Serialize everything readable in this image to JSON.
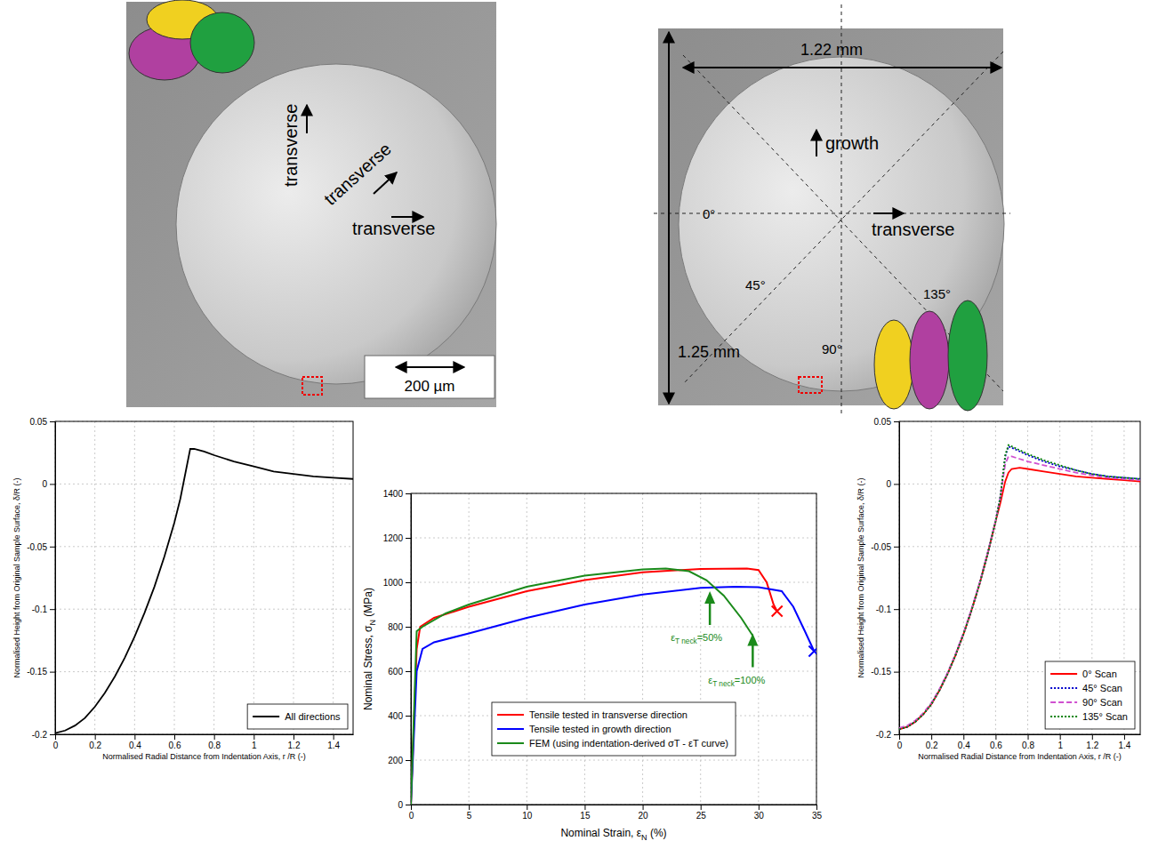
{
  "chart_data": [
    {
      "type": "line",
      "ylabel": [
        "Normalised Height from Original Sample Surface, δ/R (-)"
      ],
      "xlabel": [
        "Normalised Radial Distance from Indentation Axis, r /R (-)"
      ],
      "xlim": [
        0,
        1.5
      ],
      "xticks": [
        0,
        0.2,
        0.4,
        0.6,
        0.8,
        1,
        1.2,
        1.4
      ],
      "ylim": [
        -0.2,
        0.05
      ],
      "yticks": [
        -0.2,
        -0.15,
        -0.1,
        -0.05,
        0,
        0.05
      ],
      "grid": true,
      "legend": "lower right",
      "x": [
        0,
        0.05,
        0.1,
        0.15,
        0.2,
        0.25,
        0.3,
        0.35,
        0.4,
        0.45,
        0.5,
        0.55,
        0.6,
        0.63,
        0.66,
        0.68,
        0.7,
        0.75,
        0.8,
        0.9,
        1.0,
        1.1,
        1.2,
        1.3,
        1.4,
        1.5
      ],
      "series": [
        {
          "name": "All directions",
          "color": "#000000",
          "line_style": "solid",
          "values": [
            -0.199,
            -0.197,
            -0.193,
            -0.187,
            -0.178,
            -0.167,
            -0.154,
            -0.139,
            -0.122,
            -0.103,
            -0.082,
            -0.058,
            -0.031,
            -0.012,
            0.012,
            0.028,
            0.028,
            0.026,
            0.023,
            0.018,
            0.014,
            0.01,
            0.008,
            0.006,
            0.005,
            0.004
          ]
        }
      ]
    },
    {
      "type": "line",
      "ylabel": [
        "Nominal Stress, σ",
        "N",
        " (MPa)"
      ],
      "xlabel": [
        "Nominal Strain, ε",
        "N",
        " (%)"
      ],
      "xlim": [
        0,
        35
      ],
      "xticks": [
        0,
        5,
        10,
        15,
        20,
        25,
        30,
        35
      ],
      "ylim": [
        0,
        1400
      ],
      "yticks": [
        0,
        200,
        400,
        600,
        800,
        1000,
        1200,
        1400
      ],
      "grid": true,
      "legend": "lower center",
      "series": [
        {
          "name": "Tensile tested in transverse direction",
          "color": "#ff0000",
          "line_style": "solid",
          "marker": "end-cross",
          "x": [
            0,
            0.5,
            0.8,
            2,
            5,
            10,
            15,
            20,
            25,
            29,
            30,
            30.7,
            31.3,
            31.6
          ],
          "values": [
            0,
            700,
            800,
            840,
            890,
            960,
            1010,
            1045,
            1060,
            1062,
            1055,
            1000,
            900,
            870
          ]
        },
        {
          "name": "Tensile tested in growth direction",
          "color": "#0000ff",
          "line_style": "solid",
          "marker": "end-cross",
          "x": [
            0,
            0.5,
            1,
            2,
            5,
            10,
            15,
            20,
            25,
            28,
            30,
            32,
            33,
            34,
            34.8
          ],
          "values": [
            0,
            600,
            700,
            730,
            770,
            840,
            900,
            945,
            975,
            980,
            978,
            960,
            890,
            780,
            690
          ]
        },
        {
          "name": "FEM (using indentation-derived σT - εT curve)",
          "color": "#1a8a1a",
          "line_style": "solid",
          "marker": "none",
          "x": [
            0,
            0.5,
            1,
            3,
            5,
            10,
            15,
            20,
            22,
            24,
            25.5,
            27,
            28.5,
            29.5
          ],
          "values": [
            0,
            780,
            800,
            860,
            900,
            980,
            1030,
            1058,
            1062,
            1050,
            1010,
            940,
            840,
            760
          ]
        }
      ],
      "annotations": [
        {
          "x": 25.8,
          "y": 960,
          "color": "#1a8a1a",
          "text": [
            "ε",
            "T neck",
            "=50%"
          ]
        },
        {
          "x": 29.5,
          "y": 770,
          "color": "#1a8a1a",
          "text": [
            "ε",
            "T neck",
            "=100%"
          ]
        }
      ]
    },
    {
      "type": "line",
      "ylabel": [
        "Normalised Height from Original Sample Surface, δ/R (-)"
      ],
      "xlabel": [
        "Normalised Radial Distance from Indentation Axis, r /R (-)"
      ],
      "xlim": [
        0,
        1.5
      ],
      "xticks": [
        0,
        0.2,
        0.4,
        0.6,
        0.8,
        1,
        1.2,
        1.4
      ],
      "ylim": [
        -0.2,
        0.05
      ],
      "yticks": [
        -0.2,
        -0.15,
        -0.1,
        -0.05,
        0,
        0.05
      ],
      "grid": true,
      "legend": "lower right",
      "x": [
        0,
        0.05,
        0.1,
        0.15,
        0.2,
        0.25,
        0.3,
        0.35,
        0.4,
        0.45,
        0.5,
        0.55,
        0.6,
        0.63,
        0.66,
        0.68,
        0.7,
        0.75,
        0.8,
        0.9,
        1.0,
        1.1,
        1.2,
        1.3,
        1.4,
        1.5
      ],
      "series": [
        {
          "name": "0° Scan",
          "color": "#ff0000",
          "line_style": "solid",
          "values": [
            -0.196,
            -0.194,
            -0.19,
            -0.184,
            -0.176,
            -0.165,
            -0.152,
            -0.137,
            -0.12,
            -0.101,
            -0.08,
            -0.056,
            -0.03,
            -0.015,
            0.002,
            0.009,
            0.012,
            0.013,
            0.012,
            0.01,
            0.008,
            0.006,
            0.005,
            0.004,
            0.003,
            0.002
          ]
        },
        {
          "name": "45° Scan",
          "color": "#0000cc",
          "line_style": "dotted",
          "values": [
            -0.196,
            -0.194,
            -0.19,
            -0.184,
            -0.176,
            -0.165,
            -0.152,
            -0.137,
            -0.12,
            -0.101,
            -0.08,
            -0.056,
            -0.03,
            -0.01,
            0.022,
            0.03,
            0.029,
            0.026,
            0.023,
            0.018,
            0.014,
            0.011,
            0.008,
            0.006,
            0.005,
            0.004
          ]
        },
        {
          "name": "90° Scan",
          "color": "#d050d0",
          "line_style": "dashed",
          "values": [
            -0.195,
            -0.193,
            -0.189,
            -0.183,
            -0.175,
            -0.164,
            -0.151,
            -0.136,
            -0.119,
            -0.1,
            -0.079,
            -0.055,
            -0.029,
            -0.01,
            0.016,
            0.022,
            0.022,
            0.02,
            0.018,
            0.015,
            0.012,
            0.009,
            0.007,
            0.005,
            0.004,
            0.003
          ]
        },
        {
          "name": "135° Scan",
          "color": "#008000",
          "line_style": "dotted",
          "values": [
            -0.196,
            -0.194,
            -0.19,
            -0.184,
            -0.176,
            -0.165,
            -0.152,
            -0.137,
            -0.12,
            -0.101,
            -0.08,
            -0.056,
            -0.03,
            -0.01,
            0.023,
            0.031,
            0.03,
            0.027,
            0.024,
            0.019,
            0.015,
            0.011,
            0.008,
            0.006,
            0.005,
            0.004
          ]
        }
      ]
    }
  ],
  "micrographs": [
    {
      "labels": [
        "transverse",
        "transverse",
        "transverse"
      ],
      "scale_bar": "200 µm"
    },
    {
      "dimensions": [
        "1.22 mm",
        "1.25 mm"
      ],
      "labels": [
        "growth",
        "transverse"
      ],
      "angles": [
        "0°",
        "45°",
        "90°",
        "135°"
      ]
    }
  ]
}
